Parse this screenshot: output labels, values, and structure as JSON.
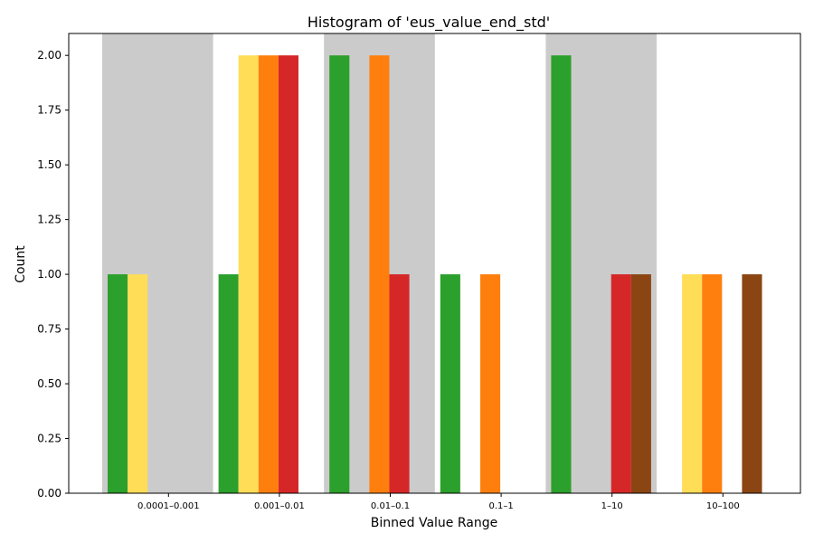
{
  "chart_data": {
    "type": "bar",
    "title": "Histogram of 'eus_value_end_std'",
    "xlabel": "Binned Value Range",
    "ylabel": "Count",
    "ylim": [
      0,
      2.1
    ],
    "yticks": [
      "0.00",
      "0.25",
      "0.50",
      "0.75",
      "1.00",
      "1.25",
      "1.50",
      "1.75",
      "2.00"
    ],
    "categories": [
      "0.0001–0.001",
      "0.001–0.01",
      "0.01–0.1",
      "0.1–1",
      "1–10",
      "10–100"
    ],
    "shaded_bins": [
      0,
      2,
      4
    ],
    "shade_color": "#cbcbcb",
    "grid": false,
    "legend": "none",
    "series": [
      {
        "color": "#2ca02c",
        "values": [
          1,
          1,
          2,
          1,
          2,
          0
        ]
      },
      {
        "color": "#ffdd57",
        "values": [
          1,
          2,
          0,
          0,
          0,
          1
        ]
      },
      {
        "color": "#ff7f0e",
        "values": [
          0,
          2,
          2,
          1,
          0,
          1
        ]
      },
      {
        "color": "#d62728",
        "values": [
          0,
          2,
          1,
          0,
          1,
          0
        ]
      },
      {
        "color": "#8b4513",
        "values": [
          0,
          0,
          0,
          0,
          1,
          1
        ]
      }
    ]
  }
}
